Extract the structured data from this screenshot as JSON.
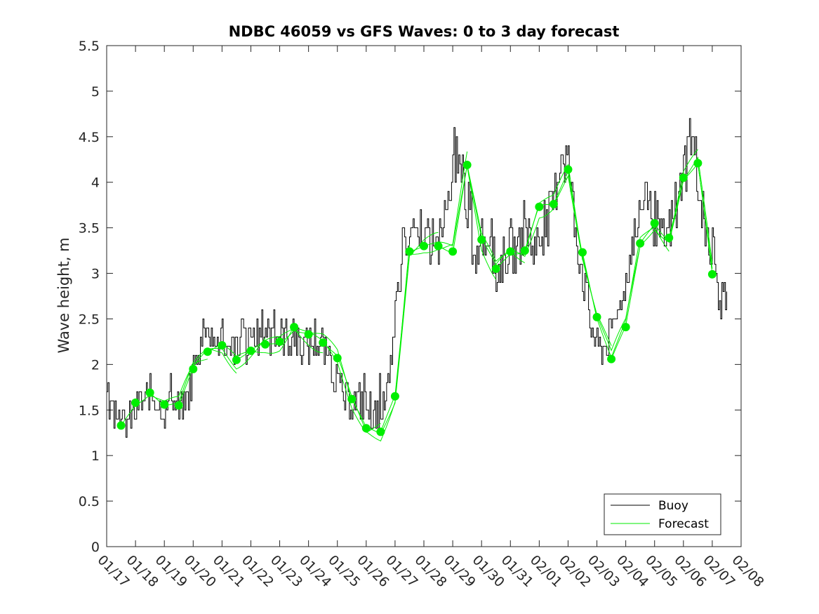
{
  "chart_data": {
    "type": "line",
    "title": "NDBC 46059 vs GFS Waves: 0 to 3 day forecast",
    "xlabel": "",
    "ylabel": "Wave height, m",
    "ylim": [
      0,
      5.5
    ],
    "yticks": [
      "0",
      "0.5",
      "1",
      "1.5",
      "2",
      "2.5",
      "3",
      "3.5",
      "4",
      "4.5",
      "5",
      "5.5"
    ],
    "x_unit": "days since 01/17",
    "xlim": [
      0,
      22
    ],
    "xticks": [
      "01/17",
      "01/18",
      "01/19",
      "01/20",
      "01/21",
      "01/22",
      "01/23",
      "01/24",
      "01/25",
      "01/26",
      "01/27",
      "01/28",
      "01/29",
      "01/30",
      "01/31",
      "02/01",
      "02/02",
      "02/03",
      "02/04",
      "02/05",
      "02/06",
      "02/07",
      "02/08"
    ],
    "legend": {
      "position": "bottom-right",
      "entries": [
        "Buoy",
        "Forecast"
      ]
    },
    "colors": {
      "buoy": "#000000",
      "forecast": "#00ee00",
      "axis": "#262626"
    },
    "series": [
      {
        "name": "Buoy",
        "x": [
          0,
          0.25,
          0.5,
          0.75,
          1,
          1.25,
          1.5,
          1.75,
          2,
          2.25,
          2.5,
          2.75,
          3,
          3.25,
          3.5,
          3.75,
          4,
          4.25,
          4.5,
          4.75,
          5,
          5.25,
          5.5,
          5.75,
          6,
          6.25,
          6.5,
          6.75,
          7,
          7.25,
          7.5,
          7.75,
          8,
          8.25,
          8.5,
          8.75,
          9,
          9.25,
          9.5,
          9.75,
          10,
          10.25,
          10.5,
          10.75,
          11,
          11.25,
          11.5,
          11.75,
          12,
          12.25,
          12.5,
          12.75,
          13,
          13.25,
          13.5,
          13.75,
          14,
          14.25,
          14.5,
          14.75,
          15,
          15.25,
          15.5,
          15.75,
          16,
          16.25,
          16.5,
          16.75,
          17,
          17.25,
          17.5,
          17.75,
          18,
          18.25,
          18.5,
          18.75,
          19,
          19.25,
          19.5,
          19.75,
          20,
          20.25,
          20.5,
          20.75,
          21,
          21.25,
          21.5
        ],
        "values": [
          1.7,
          1.4,
          1.3,
          1.4,
          1.5,
          1.6,
          1.7,
          1.6,
          1.5,
          1.6,
          1.5,
          1.6,
          1.9,
          2.2,
          2.3,
          2.2,
          2.3,
          2.2,
          2.2,
          2.3,
          2.2,
          2.3,
          2.4,
          2.3,
          2.3,
          2.3,
          2.3,
          2.3,
          2.2,
          2.3,
          2.2,
          2.0,
          1.8,
          1.6,
          1.6,
          1.6,
          1.5,
          1.4,
          1.4,
          1.8,
          2.5,
          3.4,
          3.3,
          3.4,
          3.4,
          3.3,
          3.3,
          3.6,
          4.3,
          4.4,
          3.8,
          3.2,
          3.3,
          3.5,
          3.0,
          3.2,
          3.3,
          3.2,
          3.6,
          3.3,
          3.4,
          3.5,
          3.8,
          4.4,
          4.2,
          3.5,
          3.0,
          2.5,
          2.2,
          2.2,
          2.3,
          2.5,
          3.0,
          3.4,
          3.6,
          3.7,
          3.6,
          3.3,
          3.5,
          3.7,
          4.1,
          4.6,
          4.0,
          3.5,
          3.2,
          2.8,
          2.6
        ]
      },
      {
        "name": "Forecast",
        "x": [
          0.5,
          1,
          1.5,
          2,
          2.5,
          3,
          3.5,
          4,
          4.5,
          5,
          5.5,
          6,
          6.5,
          7,
          7.5,
          8,
          8.5,
          9,
          9.5,
          10,
          10.5,
          11,
          11.5,
          12,
          12.5,
          13,
          13.5,
          14,
          14.5,
          15,
          15.5,
          16,
          16.5,
          17,
          17.5,
          18,
          18.5,
          19,
          19.5,
          20,
          20.5,
          21
        ],
        "values": [
          1.33,
          1.58,
          1.69,
          1.56,
          1.55,
          1.95,
          2.14,
          2.21,
          2.05,
          2.15,
          2.22,
          2.25,
          2.41,
          2.33,
          2.24,
          2.07,
          1.62,
          1.3,
          1.26,
          1.65,
          3.24,
          3.3,
          3.3,
          3.24,
          4.19,
          3.37,
          3.05,
          3.24,
          3.25,
          3.73,
          3.76,
          4.14,
          3.23,
          2.52,
          2.06,
          2.41,
          3.33,
          3.55,
          3.39,
          4.05,
          4.21,
          2.99
        ]
      }
    ]
  }
}
